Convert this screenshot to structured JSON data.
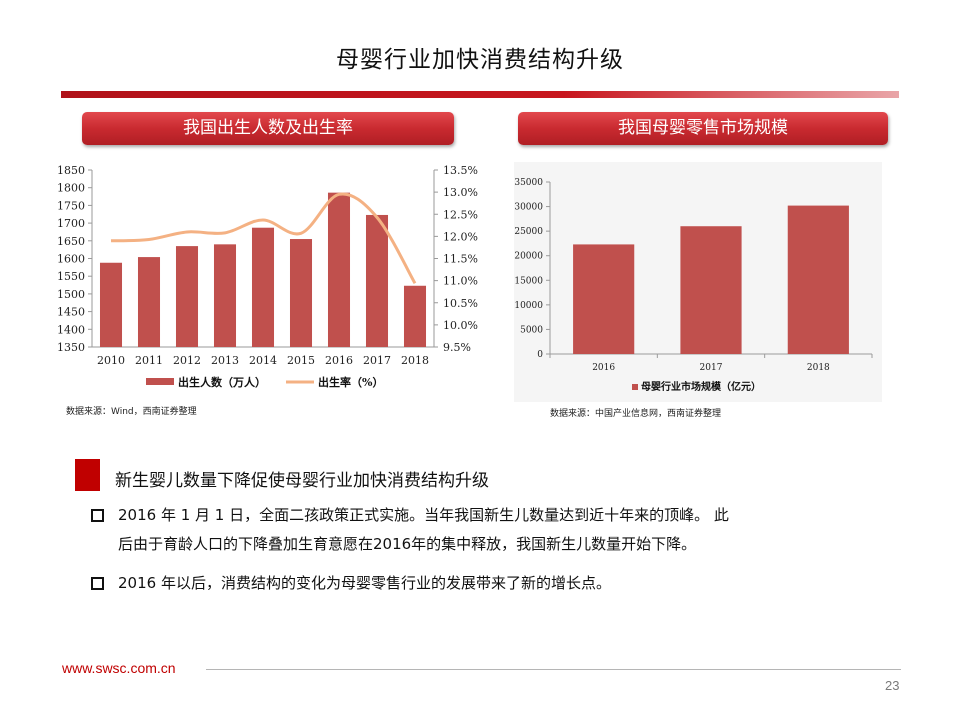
{
  "title": "母婴行业加快消费结构升级",
  "panels": {
    "left_header": "我国出生人数及出生率",
    "right_header": "我国母婴零售市场规模",
    "left_source": "数据来源：Wind，西南证券整理",
    "right_source": "数据来源：中国产业信息网，西南证券整理"
  },
  "chart_data": [
    {
      "type": "bar",
      "categories": [
        "2010",
        "2011",
        "2012",
        "2013",
        "2014",
        "2015",
        "2016",
        "2017",
        "2018"
      ],
      "series": [
        {
          "name": "出生人数（万人）",
          "type": "bar",
          "axis": "left",
          "color": "#c0504d",
          "values": [
            1588,
            1604,
            1635,
            1640,
            1687,
            1655,
            1786,
            1723,
            1523
          ]
        },
        {
          "name": "出生率（%）",
          "type": "line",
          "axis": "right",
          "color": "#f4b183",
          "values": [
            11.9,
            11.93,
            12.1,
            12.08,
            12.37,
            12.07,
            12.95,
            12.43,
            10.94
          ]
        }
      ],
      "y_left": {
        "min": 1350,
        "max": 1850,
        "ticks": [
          "1350",
          "1400",
          "1450",
          "1500",
          "1550",
          "1600",
          "1650",
          "1700",
          "1750",
          "1800",
          "1850"
        ]
      },
      "y_right": {
        "min": 9.5,
        "max": 13.5,
        "ticks": [
          "9.5%",
          "10.0%",
          "10.5%",
          "11.0%",
          "11.5%",
          "12.0%",
          "12.5%",
          "13.0%",
          "13.5%"
        ]
      },
      "legend_position": "bottom"
    },
    {
      "type": "bar",
      "categories": [
        "2016",
        "2017",
        "2018"
      ],
      "series": [
        {
          "name": "母婴行业市场规模（亿元）",
          "color": "#c0504d",
          "values": [
            22300,
            26000,
            30200
          ]
        }
      ],
      "ylim": [
        0,
        35000
      ],
      "y_ticks": [
        "0",
        "5000",
        "10000",
        "15000",
        "20000",
        "25000",
        "30000",
        "35000"
      ],
      "legend_position": "bottom"
    }
  ],
  "section": {
    "title": "新生婴儿数量下降促使母婴行业加快消费结构升级",
    "bullets": [
      {
        "line1": "2016 年 1 月 1 日，全面二孩政策正式实施。当年我国新生儿数量达到近十年来的顶峰。 此",
        "line2": "后由于育龄人口的下降叠加生育意愿在2016年的集中释放，我国新生儿数量开始下降。"
      },
      {
        "line1": " 2016 年以后，消费结构的变化为母婴零售行业的发展带来了新的增长点。",
        "line2": ""
      }
    ]
  },
  "footer": {
    "site": "www.swsc.com.cn",
    "page": "23"
  },
  "colors": {
    "accent": "#c00000",
    "bar": "#c0504d",
    "line": "#f4b183"
  }
}
